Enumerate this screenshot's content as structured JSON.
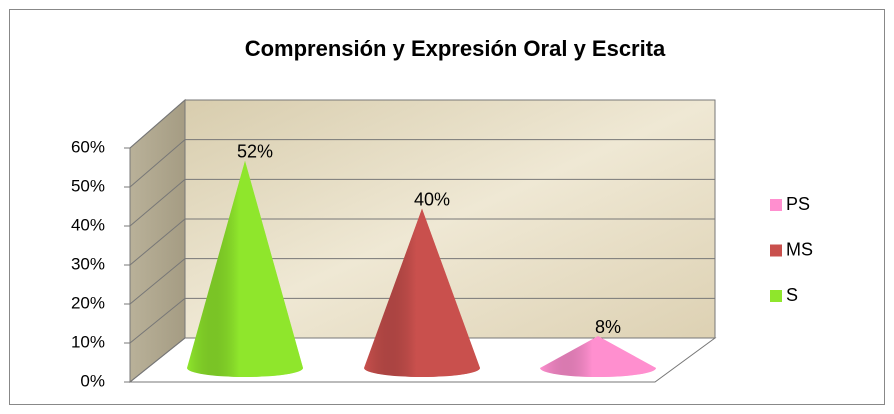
{
  "chart_data": {
    "type": "cone3d",
    "title": "Comprensión y Expresión Oral y Escrita",
    "series": [
      {
        "name": "S",
        "color": "#8fe62c",
        "values": [
          52
        ],
        "value_labels": [
          "52%"
        ]
      },
      {
        "name": "MS",
        "color": "#c9504d",
        "values": [
          40
        ],
        "value_labels": [
          "40%"
        ]
      },
      {
        "name": "PS",
        "color": "#ff8fcf",
        "values": [
          8
        ],
        "value_labels": [
          "8%"
        ]
      }
    ],
    "ylim": [
      0,
      60
    ],
    "yticks": [
      {
        "value": 0,
        "label": "0%"
      },
      {
        "value": 10,
        "label": "10%"
      },
      {
        "value": 20,
        "label": "20%"
      },
      {
        "value": 30,
        "label": "30%"
      },
      {
        "value": 40,
        "label": "40%"
      },
      {
        "value": 50,
        "label": "50%"
      },
      {
        "value": 60,
        "label": "60%"
      }
    ],
    "grid": true,
    "legend": "right"
  }
}
